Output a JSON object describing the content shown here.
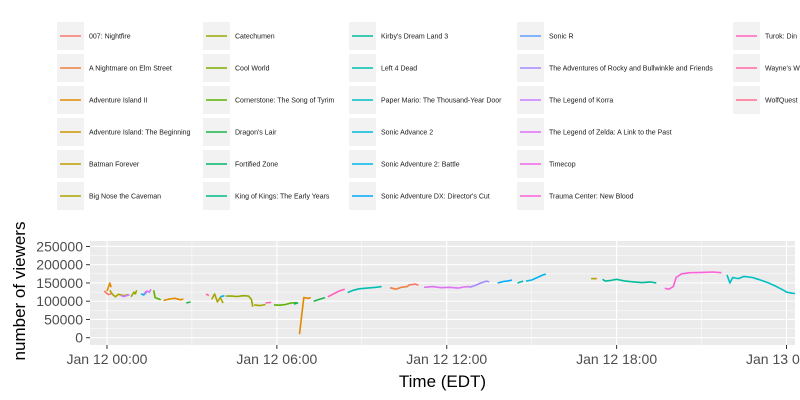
{
  "chart_data": {
    "type": "line",
    "title": "",
    "xlabel": "Time (EDT)",
    "ylabel": "number of viewers",
    "x_ticks": [
      "Jan 12 00:00",
      "Jan 12 06:00",
      "Jan 12 12:00",
      "Jan 12 18:00",
      "Jan 13 00:00"
    ],
    "x_range_hours": [
      -0.6,
      24.3
    ],
    "y_ticks": [
      "0",
      "50000",
      "100000",
      "150000",
      "200000",
      "250000"
    ],
    "ylim": [
      -20000,
      265000
    ],
    "grid": true,
    "legend_position": "top",
    "legend": [
      {
        "name": "007: Nightfire",
        "color": "#F8766D"
      },
      {
        "name": "A Nightmare on Elm Street",
        "color": "#EE8043"
      },
      {
        "name": "Adventure Island II",
        "color": "#E18A00"
      },
      {
        "name": "Adventure Island: The Beginning",
        "color": "#D09400"
      },
      {
        "name": "Batman Forever",
        "color": "#BE9C00"
      },
      {
        "name": "Big Nose the Caveman",
        "color": "#ABA300"
      },
      {
        "name": "Catechumen",
        "color": "#96A900"
      },
      {
        "name": "Cool World",
        "color": "#7CAE00"
      },
      {
        "name": "Cornerstone: The Song of Tyrim",
        "color": "#5BB300"
      },
      {
        "name": "Dragon's Lair",
        "color": "#1AB64D"
      },
      {
        "name": "Fortified Zone",
        "color": "#00B86B"
      },
      {
        "name": "King of Kings: The Early Years",
        "color": "#00BB85"
      },
      {
        "name": "Kirby's Dream Land 3",
        "color": "#00BC9B"
      },
      {
        "name": "Left 4 Dead",
        "color": "#00BFB0"
      },
      {
        "name": "Paper Mario: The Thousand-Year Door",
        "color": "#00BFC4"
      },
      {
        "name": "Sonic Advance 2",
        "color": "#00BBD7"
      },
      {
        "name": "Sonic Adventure 2: Battle",
        "color": "#00B6EB"
      },
      {
        "name": "Sonic Adventure DX: Director's Cut",
        "color": "#00ABFA"
      },
      {
        "name": "Sonic R",
        "color": "#619CFF"
      },
      {
        "name": "The Adventures of Rocky and Bullwinkle and Friends",
        "color": "#A58AFF"
      },
      {
        "name": "The Legend of Korra",
        "color": "#C77CFF"
      },
      {
        "name": "The Legend of Zelda: A Link to the Past",
        "color": "#DF70F8"
      },
      {
        "name": "Timecop",
        "color": "#F166E8"
      },
      {
        "name": "Trauma Center: New Blood",
        "color": "#FB61D7"
      },
      {
        "name": "Turok: Din",
        "color": "#FF62BC"
      },
      {
        "name": "Wayne's W",
        "color": "#FF67A4"
      },
      {
        "name": "WolfQuest",
        "color": "#FF6C90"
      }
    ],
    "series": [
      {
        "color": "#F8766D",
        "points": [
          [
            -0.1,
            128000
          ],
          [
            0.05,
            118000
          ],
          [
            0.15,
            120000
          ]
        ]
      },
      {
        "color": "#E18A00",
        "points": [
          [
            0.0,
            128000
          ],
          [
            0.1,
            150000
          ],
          [
            0.15,
            138000
          ]
        ]
      },
      {
        "color": "#ABA300",
        "points": [
          [
            0.1,
            130000
          ],
          [
            0.2,
            118000
          ],
          [
            0.3,
            112000
          ],
          [
            0.4,
            119000
          ],
          [
            0.6,
            115000
          ],
          [
            0.75,
            118000
          ]
        ]
      },
      {
        "color": "#C77CFF",
        "points": [
          [
            0.5,
            115000
          ],
          [
            0.6,
            113000
          ],
          [
            0.8,
            118000
          ]
        ]
      },
      {
        "color": "#96A900",
        "points": [
          [
            0.85,
            112000
          ],
          [
            0.95,
            125000
          ],
          [
            1.0,
            120000
          ],
          [
            1.05,
            130000
          ]
        ]
      },
      {
        "color": "#00B6EB",
        "points": [
          [
            1.2,
            120000
          ],
          [
            1.3,
            117000
          ],
          [
            1.4,
            125000
          ]
        ]
      },
      {
        "color": "#DF70F8",
        "points": [
          [
            1.3,
            120000
          ],
          [
            1.4,
            128000
          ],
          [
            1.5,
            125000
          ],
          [
            1.55,
            133000
          ]
        ]
      },
      {
        "color": "#5BB300",
        "points": [
          [
            1.65,
            130000
          ],
          [
            1.7,
            110000
          ],
          [
            1.9,
            104000
          ]
        ]
      },
      {
        "color": "#E18A00",
        "points": [
          [
            2.0,
            102000
          ],
          [
            2.2,
            106000
          ],
          [
            2.4,
            108000
          ],
          [
            2.6,
            104000
          ],
          [
            2.7,
            106000
          ]
        ]
      },
      {
        "color": "#1AB64D",
        "points": [
          [
            2.8,
            95000
          ],
          [
            2.95,
            98000
          ]
        ]
      },
      {
        "color": "#FF67A4",
        "points": [
          [
            3.5,
            120000
          ],
          [
            3.6,
            115000
          ]
        ]
      },
      {
        "color": "#ABA300",
        "points": [
          [
            3.7,
            105000
          ],
          [
            3.8,
            120000
          ],
          [
            3.9,
            98000
          ],
          [
            4.0,
            110000
          ],
          [
            4.1,
            95000
          ]
        ]
      },
      {
        "color": "#00B6EB",
        "points": [
          [
            4.0,
            112000
          ],
          [
            4.15,
            115000
          ]
        ]
      },
      {
        "color": "#96A900",
        "points": [
          [
            4.2,
            114000
          ],
          [
            4.4,
            114000
          ],
          [
            4.6,
            113000
          ],
          [
            4.8,
            115000
          ],
          [
            5.0,
            114000
          ],
          [
            5.1,
            105000
          ],
          [
            5.15,
            85000
          ]
        ]
      },
      {
        "color": "#ABA300",
        "points": [
          [
            5.2,
            90000
          ],
          [
            5.4,
            88000
          ],
          [
            5.6,
            91000
          ]
        ]
      },
      {
        "color": "#FF62BC",
        "points": [
          [
            5.6,
            95000
          ],
          [
            5.8,
            97000
          ]
        ]
      },
      {
        "color": "#5BB300",
        "points": [
          [
            5.9,
            90000
          ],
          [
            6.1,
            89000
          ],
          [
            6.3,
            91000
          ],
          [
            6.5,
            95000
          ],
          [
            6.7,
            96000
          ]
        ]
      },
      {
        "color": "#00B86B",
        "points": [
          [
            6.6,
            92000
          ],
          [
            6.75,
            96000
          ]
        ]
      },
      {
        "color": "#E18A00",
        "points": [
          [
            6.8,
            10000
          ],
          [
            6.95,
            110000
          ],
          [
            7.1,
            108000
          ],
          [
            7.2,
            110000
          ]
        ]
      },
      {
        "color": "#1AB64D",
        "points": [
          [
            7.3,
            100000
          ],
          [
            7.5,
            105000
          ],
          [
            7.7,
            110000
          ]
        ]
      },
      {
        "color": "#FF62BC",
        "points": [
          [
            7.8,
            112000
          ],
          [
            8.0,
            120000
          ],
          [
            8.2,
            128000
          ],
          [
            8.4,
            133000
          ]
        ]
      },
      {
        "color": "#00BFB0",
        "points": [
          [
            8.5,
            124000
          ],
          [
            8.7,
            130000
          ],
          [
            8.9,
            134000
          ],
          [
            9.2,
            136000
          ],
          [
            9.5,
            138000
          ],
          [
            9.7,
            140000
          ]
        ]
      },
      {
        "color": "#EE8043",
        "points": [
          [
            10.0,
            137000
          ],
          [
            10.2,
            133000
          ],
          [
            10.4,
            138000
          ],
          [
            10.6,
            140000
          ],
          [
            10.7,
            146000
          ]
        ]
      },
      {
        "color": "#F8766D",
        "points": [
          [
            10.7,
            145000
          ],
          [
            10.9,
            147000
          ],
          [
            11.0,
            144000
          ]
        ]
      },
      {
        "color": "#DF70F8",
        "points": [
          [
            11.2,
            138000
          ],
          [
            11.5,
            140000
          ],
          [
            11.8,
            137000
          ],
          [
            12.1,
            138000
          ],
          [
            12.4,
            136000
          ],
          [
            12.6,
            139000
          ],
          [
            12.8,
            140000
          ]
        ]
      },
      {
        "color": "#A58AFF",
        "points": [
          [
            12.8,
            138000
          ],
          [
            13.0,
            143000
          ],
          [
            13.2,
            150000
          ],
          [
            13.4,
            155000
          ],
          [
            13.5,
            153000
          ]
        ]
      },
      {
        "color": "#00ABFA",
        "points": [
          [
            13.8,
            150000
          ],
          [
            14.0,
            154000
          ],
          [
            14.2,
            156000
          ],
          [
            14.3,
            158000
          ]
        ]
      },
      {
        "color": "#00BFB0",
        "points": [
          [
            14.5,
            150000
          ],
          [
            14.7,
            155000
          ]
        ]
      },
      {
        "color": "#00B6EB",
        "points": [
          [
            14.8,
            155000
          ],
          [
            15.0,
            158000
          ],
          [
            15.2,
            165000
          ],
          [
            15.4,
            172000
          ],
          [
            15.5,
            174000
          ]
        ]
      },
      {
        "color": "#BE9C00",
        "points": [
          [
            17.1,
            162000
          ],
          [
            17.3,
            162000
          ]
        ]
      },
      {
        "color": "#00BC9B",
        "points": [
          [
            17.5,
            160000
          ],
          [
            17.6,
            155000
          ],
          [
            17.8,
            157000
          ],
          [
            18.0,
            160000
          ],
          [
            18.3,
            155000
          ],
          [
            18.6,
            153000
          ],
          [
            18.9,
            151000
          ],
          [
            19.2,
            153000
          ],
          [
            19.4,
            150000
          ]
        ]
      },
      {
        "color": "#FB61D7",
        "points": [
          [
            19.7,
            135000
          ],
          [
            19.85,
            133000
          ],
          [
            20.0,
            140000
          ],
          [
            20.1,
            165000
          ],
          [
            20.3,
            175000
          ],
          [
            20.6,
            178000
          ],
          [
            21.0,
            179000
          ],
          [
            21.4,
            180000
          ],
          [
            21.7,
            178000
          ]
        ]
      },
      {
        "color": "#00BFC4",
        "points": [
          [
            21.9,
            172000
          ],
          [
            22.0,
            150000
          ],
          [
            22.1,
            165000
          ],
          [
            22.3,
            162000
          ],
          [
            22.5,
            168000
          ],
          [
            22.8,
            165000
          ],
          [
            23.0,
            160000
          ],
          [
            23.3,
            152000
          ],
          [
            23.6,
            142000
          ],
          [
            23.9,
            130000
          ],
          [
            24.0,
            125000
          ],
          [
            24.2,
            122000
          ],
          [
            24.3,
            121000
          ]
        ]
      }
    ]
  }
}
